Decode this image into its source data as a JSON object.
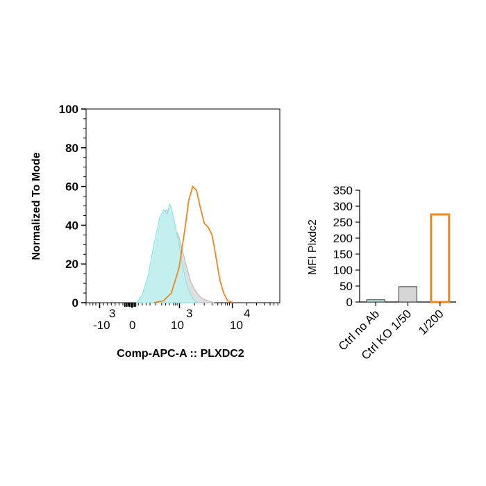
{
  "chart_data": [
    {
      "type": "area",
      "xlabel": "Comp-APC-A :: PLXDC2",
      "ylabel": "Normalized To Mode",
      "ylim": [
        0,
        100
      ],
      "y_ticks": [
        "0",
        "20",
        "40",
        "60",
        "80",
        "100"
      ],
      "x_ticks": [
        {
          "base": "-10",
          "exp": "3"
        },
        {
          "base": "0",
          "exp": ""
        },
        {
          "base": "10",
          "exp": "3"
        },
        {
          "base": "10",
          "exp": "4"
        }
      ],
      "series": [
        {
          "color": "#b7b7b7",
          "fill": "#d9d9d9",
          "points": [
            [
              0.27,
              0
            ],
            [
              0.3,
              5
            ],
            [
              0.33,
              15
            ],
            [
              0.36,
              28
            ],
            [
              0.38,
              40
            ],
            [
              0.4,
              47
            ],
            [
              0.42,
              48
            ],
            [
              0.44,
              45
            ],
            [
              0.46,
              38
            ],
            [
              0.48,
              34
            ],
            [
              0.5,
              26
            ],
            [
              0.52,
              18
            ],
            [
              0.54,
              11
            ],
            [
              0.56,
              7
            ],
            [
              0.58,
              4
            ],
            [
              0.6,
              2
            ],
            [
              0.63,
              1
            ],
            [
              0.66,
              0
            ]
          ]
        },
        {
          "color": "#7fe3e3",
          "fill": "#bff2f2",
          "points": [
            [
              0.26,
              0
            ],
            [
              0.29,
              4
            ],
            [
              0.32,
              14
            ],
            [
              0.35,
              30
            ],
            [
              0.38,
              44
            ],
            [
              0.4,
              48
            ],
            [
              0.42,
              46
            ],
            [
              0.43,
              51
            ],
            [
              0.44,
              49
            ],
            [
              0.46,
              40
            ],
            [
              0.48,
              30
            ],
            [
              0.5,
              18
            ],
            [
              0.52,
              9
            ],
            [
              0.54,
              4
            ],
            [
              0.56,
              1
            ],
            [
              0.58,
              0
            ]
          ]
        },
        {
          "color": "#f0861b",
          "fill": "none",
          "points": [
            [
              0.35,
              0
            ],
            [
              0.4,
              1
            ],
            [
              0.44,
              5
            ],
            [
              0.48,
              18
            ],
            [
              0.51,
              38
            ],
            [
              0.53,
              53
            ],
            [
              0.55,
              60
            ],
            [
              0.57,
              58
            ],
            [
              0.59,
              49
            ],
            [
              0.61,
              41
            ],
            [
              0.63,
              39
            ],
            [
              0.65,
              35
            ],
            [
              0.67,
              24
            ],
            [
              0.69,
              12
            ],
            [
              0.71,
              5
            ],
            [
              0.73,
              1
            ],
            [
              0.76,
              0
            ]
          ]
        }
      ]
    },
    {
      "type": "bar",
      "ylabel": "MFI Plxdc2",
      "ylim": [
        0,
        350
      ],
      "y_ticks": [
        "0",
        "50",
        "100",
        "150",
        "200",
        "250",
        "300",
        "350"
      ],
      "categories": [
        "Ctrl no Ab",
        "Ctrl KO 1/50",
        "1/200"
      ],
      "values": [
        7,
        48,
        274
      ],
      "bar_fills": [
        "#bfecef",
        "#d6d6d6",
        "#ffffff"
      ],
      "bar_strokes": [
        "#333333",
        "#333333",
        "#f0861b"
      ]
    }
  ]
}
